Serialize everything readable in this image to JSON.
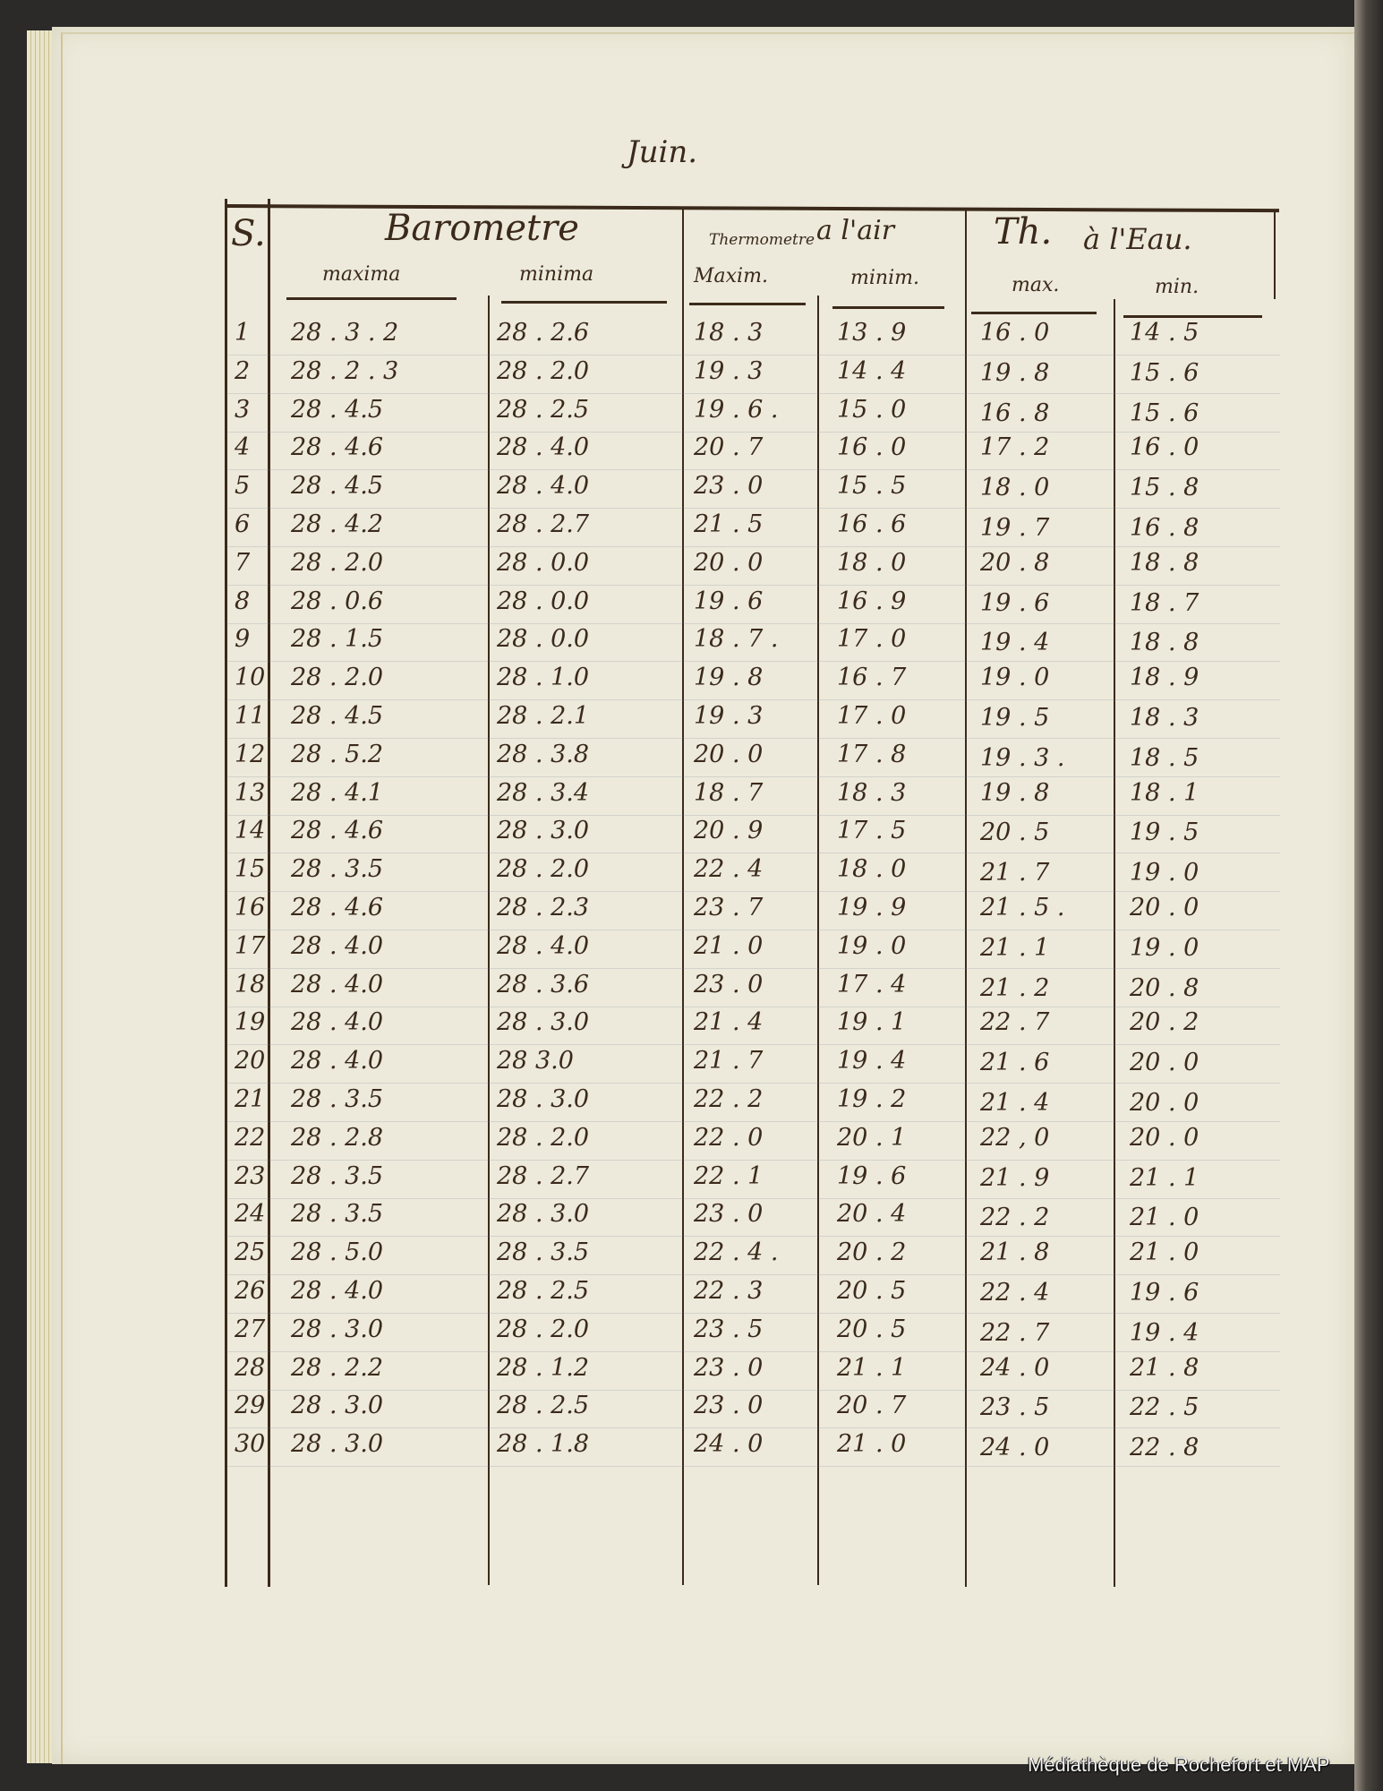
{
  "title": "Juin.",
  "headers": {
    "day": "S.",
    "barometer": "Barometre",
    "baro_max": "maxima",
    "baro_min": "minima",
    "thermo": "Thermometre",
    "thermo_air": "a l'air",
    "thermo_max": "Maxim.",
    "thermo_min": "minim.",
    "water": "Th.",
    "water_label": "à l'Eau.",
    "water_max": "max.",
    "water_min": "min."
  },
  "rows": [
    {
      "day": "1",
      "baro_max": "28 . 3 . 2",
      "baro_min": "28 .  2.6",
      "air_max": "18 . 3",
      "air_min": "13 . 9",
      "water_max": "16 . 0",
      "water_min": "14 . 5"
    },
    {
      "day": "2",
      "baro_max": "28 . 2 . 3",
      "baro_min": "28 .  2.0",
      "air_max": "19 . 3",
      "air_min": "14 . 4",
      "water_max": "19 . 8",
      "water_min": "15 . 6"
    },
    {
      "day": "3",
      "baro_max": "28 . 4.5",
      "baro_min": "28 .  2.5",
      "air_max": "19 . 6 .",
      "air_min": "15 . 0",
      "water_max": "16 . 8",
      "water_min": "15 . 6"
    },
    {
      "day": "4",
      "baro_max": "28 . 4.6",
      "baro_min": "28 .  4.0",
      "air_max": "20 . 7",
      "air_min": "16 . 0",
      "water_max": "17 . 2",
      "water_min": "16 . 0"
    },
    {
      "day": "5",
      "baro_max": "28 . 4.5",
      "baro_min": "28 .  4.0",
      "air_max": "23 . 0",
      "air_min": "15 . 5",
      "water_max": "18 . 0",
      "water_min": "15 . 8"
    },
    {
      "day": "6",
      "baro_max": "28 . 4.2",
      "baro_min": "28 .  2.7",
      "air_max": "21 . 5",
      "air_min": "16 . 6",
      "water_max": "19 . 7",
      "water_min": "16 . 8"
    },
    {
      "day": "7",
      "baro_max": "28 . 2.0",
      "baro_min": "28 .  0.0",
      "air_max": "20 . 0",
      "air_min": "18 . 0",
      "water_max": "20 . 8",
      "water_min": "18 . 8"
    },
    {
      "day": "8",
      "baro_max": "28 . 0.6",
      "baro_min": "28 .  0.0",
      "air_max": "19 . 6",
      "air_min": "16 . 9",
      "water_max": "19 . 6",
      "water_min": "18 . 7"
    },
    {
      "day": "9",
      "baro_max": "28 . 1.5",
      "baro_min": "28 .  0.0",
      "air_max": "18 . 7 .",
      "air_min": "17 . 0",
      "water_max": "19 . 4",
      "water_min": "18 . 8"
    },
    {
      "day": "10",
      "baro_max": "28 . 2.0",
      "baro_min": "28 .  1.0",
      "air_max": "19 . 8",
      "air_min": "16 . 7",
      "water_max": "19 . 0",
      "water_min": "18 . 9"
    },
    {
      "day": "11",
      "baro_max": "28 . 4.5",
      "baro_min": "28 .  2.1",
      "air_max": "19 . 3",
      "air_min": "17 . 0",
      "water_max": "19 . 5",
      "water_min": "18 . 3"
    },
    {
      "day": "12",
      "baro_max": "28 . 5.2",
      "baro_min": "28 .  3.8",
      "air_max": "20 . 0",
      "air_min": "17 . 8",
      "water_max": "19 . 3 .",
      "water_min": "18 . 5"
    },
    {
      "day": "13",
      "baro_max": "28 . 4.1",
      "baro_min": "28 .  3.4",
      "air_max": "18 . 7",
      "air_min": "18 . 3",
      "water_max": "19 . 8",
      "water_min": "18 . 1"
    },
    {
      "day": "14",
      "baro_max": "28 . 4.6",
      "baro_min": "28 .  3.0",
      "air_max": "20 . 9",
      "air_min": "17 . 5",
      "water_max": "20 . 5",
      "water_min": "19 . 5"
    },
    {
      "day": "15",
      "baro_max": "28 . 3.5",
      "baro_min": "28 .  2.0",
      "air_max": "22 . 4",
      "air_min": "18 . 0",
      "water_max": "21 . 7",
      "water_min": "19 . 0"
    },
    {
      "day": "16",
      "baro_max": "28 . 4.6",
      "baro_min": "28 .  2.3",
      "air_max": "23 . 7",
      "air_min": "19 . 9",
      "water_max": "21 . 5 .",
      "water_min": "20 . 0"
    },
    {
      "day": "17",
      "baro_max": "28 . 4.0",
      "baro_min": "28 .  4.0",
      "air_max": "21 . 0",
      "air_min": "19 . 0",
      "water_max": "21 . 1",
      "water_min": "19 . 0"
    },
    {
      "day": "18",
      "baro_max": "28 . 4.0",
      "baro_min": "28 .  3.6",
      "air_max": "23 . 0",
      "air_min": "17 . 4",
      "water_max": "21 . 2",
      "water_min": "20 . 8"
    },
    {
      "day": "19",
      "baro_max": "28 . 4.0",
      "baro_min": "28 .  3.0",
      "air_max": "21 . 4",
      "air_min": "19 . 1",
      "water_max": "22 . 7",
      "water_min": "20 . 2"
    },
    {
      "day": "20",
      "baro_max": "28 . 4.0",
      "baro_min": "28    3.0",
      "air_max": "21 . 7",
      "air_min": "19 . 4",
      "water_max": "21 . 6",
      "water_min": "20 . 0"
    },
    {
      "day": "21",
      "baro_max": "28 . 3.5",
      "baro_min": "28 .  3.0",
      "air_max": "22 . 2",
      "air_min": "19 . 2",
      "water_max": "21 . 4",
      "water_min": "20 . 0"
    },
    {
      "day": "22",
      "baro_max": "28 . 2.8",
      "baro_min": "28 .  2.0",
      "air_max": "22 . 0",
      "air_min": "20 . 1",
      "water_max": "22 , 0",
      "water_min": "20 . 0"
    },
    {
      "day": "23",
      "baro_max": "28 . 3.5",
      "baro_min": "28 .  2.7",
      "air_max": "22 . 1",
      "air_min": "19 . 6",
      "water_max": "21 . 9",
      "water_min": "21 . 1"
    },
    {
      "day": "24",
      "baro_max": "28 . 3.5",
      "baro_min": "28 .  3.0",
      "air_max": "23 . 0",
      "air_min": "20 . 4",
      "water_max": "22 . 2",
      "water_min": "21 . 0"
    },
    {
      "day": "25",
      "baro_max": "28 . 5.0",
      "baro_min": "28 .  3.5",
      "air_max": "22 . 4 .",
      "air_min": "20 . 2",
      "water_max": "21 . 8",
      "water_min": "21 . 0"
    },
    {
      "day": "26",
      "baro_max": "28 . 4.0",
      "baro_min": "28 .  2.5",
      "air_max": "22 . 3",
      "air_min": "20 . 5",
      "water_max": "22 . 4",
      "water_min": "19 . 6"
    },
    {
      "day": "27",
      "baro_max": "28 . 3.0",
      "baro_min": "28 .  2.0",
      "air_max": "23 . 5",
      "air_min": "20 . 5",
      "water_max": "22 . 7",
      "water_min": "19 . 4"
    },
    {
      "day": "28",
      "baro_max": "28 . 2.2",
      "baro_min": "28 .  1.2",
      "air_max": "23 . 0",
      "air_min": "21 . 1",
      "water_max": "24 . 0",
      "water_min": "21 . 8"
    },
    {
      "day": "29",
      "baro_max": "28 . 3.0",
      "baro_min": "28 .  2.5",
      "air_max": "23 . 0",
      "air_min": "20 . 7",
      "water_max": "23 . 5",
      "water_min": "22 . 5"
    },
    {
      "day": "30",
      "baro_max": "28 . 3.0",
      "baro_min": "28 .  1.8",
      "air_max": "24 . 0",
      "air_min": "21 . 0",
      "water_max": "24 . 0",
      "water_min": "22 . 8"
    }
  ],
  "footer": "Médiathèque de Rochefort et MAP",
  "colors": {
    "ink": "#3b2a1b",
    "paper": "#edeadb",
    "background": "#2b2a29"
  }
}
